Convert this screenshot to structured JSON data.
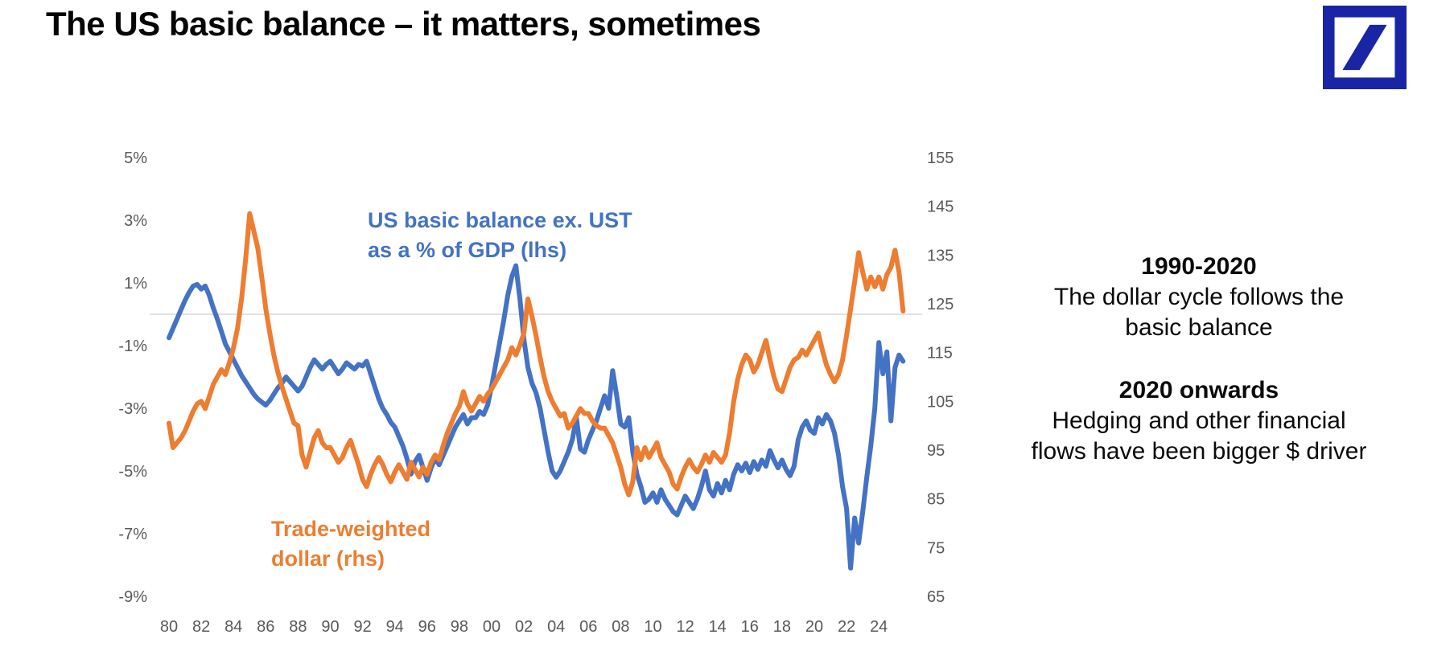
{
  "page": {
    "title": "The US basic balance – it matters, sometimes"
  },
  "logo": {
    "name": "deutsche-bank-logo",
    "color": "#1A25A5"
  },
  "annotations": {
    "blue_label": {
      "lines": [
        "US basic balance ex. UST",
        "as a % of GDP (lhs)"
      ],
      "color": "#4472C4"
    },
    "orange_label": {
      "lines": [
        "Trade-weighted",
        "dollar (rhs)"
      ],
      "color": "#ED7D31"
    }
  },
  "side_text": {
    "para1": {
      "heading": "1990-2020",
      "lines": [
        "The dollar cycle follows the",
        "basic balance"
      ]
    },
    "para2": {
      "heading": "2020 onwards",
      "lines": [
        "Hedging and other financial",
        "flows have been bigger $ driver"
      ]
    }
  },
  "chart_data": {
    "type": "line",
    "title": "",
    "xlabel": "",
    "ylabel_left": "US basic balance ex. UST as a % of GDP",
    "ylabel_right": "Trade-weighted dollar",
    "grid": "single horizontal zero line only",
    "legend_position": "in-plot text labels",
    "zero_line": {
      "axis": "left",
      "value": 0,
      "color": "#D9D9D9"
    },
    "x_axis": {
      "start_year": 1980,
      "end_year": 2025.5,
      "step_years": 0.25,
      "ticks": [
        {
          "label": "80",
          "year": 1980
        },
        {
          "label": "82",
          "year": 1982
        },
        {
          "label": "84",
          "year": 1984
        },
        {
          "label": "86",
          "year": 1986
        },
        {
          "label": "88",
          "year": 1988
        },
        {
          "label": "90",
          "year": 1990
        },
        {
          "label": "92",
          "year": 1992
        },
        {
          "label": "94",
          "year": 1994
        },
        {
          "label": "96",
          "year": 1996
        },
        {
          "label": "98",
          "year": 1998
        },
        {
          "label": "00",
          "year": 2000
        },
        {
          "label": "02",
          "year": 2002
        },
        {
          "label": "04",
          "year": 2004
        },
        {
          "label": "06",
          "year": 2006
        },
        {
          "label": "08",
          "year": 2008
        },
        {
          "label": "10",
          "year": 2010
        },
        {
          "label": "12",
          "year": 2012
        },
        {
          "label": "14",
          "year": 2014
        },
        {
          "label": "16",
          "year": 2016
        },
        {
          "label": "18",
          "year": 2018
        },
        {
          "label": "20",
          "year": 2020
        },
        {
          "label": "22",
          "year": 2022
        },
        {
          "label": "24",
          "year": 2024
        }
      ]
    },
    "left_axis": {
      "min": -9,
      "max": 5,
      "ticks": [
        {
          "label": "5%",
          "v": 5
        },
        {
          "label": "3%",
          "v": 3
        },
        {
          "label": "1%",
          "v": 1
        },
        {
          "label": "-1%",
          "v": -1
        },
        {
          "label": "-3%",
          "v": -3
        },
        {
          "label": "-5%",
          "v": -5
        },
        {
          "label": "-7%",
          "v": -7
        },
        {
          "label": "-9%",
          "v": -9
        }
      ]
    },
    "right_axis": {
      "min": 65,
      "max": 155,
      "ticks": [
        {
          "label": "155",
          "v": 155
        },
        {
          "label": "145",
          "v": 145
        },
        {
          "label": "135",
          "v": 135
        },
        {
          "label": "125",
          "v": 125
        },
        {
          "label": "115",
          "v": 115
        },
        {
          "label": "105",
          "v": 105
        },
        {
          "label": "95",
          "v": 95
        },
        {
          "label": "85",
          "v": 85
        },
        {
          "label": "75",
          "v": 75
        },
        {
          "label": "65",
          "v": 65
        }
      ]
    },
    "series": [
      {
        "name": "US basic balance ex. UST as a % of GDP (lhs)",
        "axis": "left",
        "color": "#4472C4",
        "values": [
          -0.75,
          -0.45,
          -0.15,
          0.15,
          0.45,
          0.7,
          0.9,
          0.95,
          0.8,
          0.9,
          0.6,
          0.2,
          -0.15,
          -0.55,
          -0.95,
          -1.2,
          -1.45,
          -1.7,
          -1.95,
          -2.15,
          -2.35,
          -2.55,
          -2.7,
          -2.8,
          -2.9,
          -2.75,
          -2.55,
          -2.35,
          -2.2,
          -2.0,
          -2.15,
          -2.3,
          -2.45,
          -2.3,
          -2.0,
          -1.7,
          -1.45,
          -1.6,
          -1.75,
          -1.6,
          -1.5,
          -1.7,
          -1.9,
          -1.75,
          -1.55,
          -1.65,
          -1.75,
          -1.6,
          -1.65,
          -1.5,
          -1.9,
          -2.3,
          -2.7,
          -3.0,
          -3.2,
          -3.45,
          -3.6,
          -3.9,
          -4.2,
          -4.6,
          -5.1,
          -4.7,
          -4.5,
          -4.9,
          -5.3,
          -4.9,
          -4.6,
          -4.8,
          -4.5,
          -4.2,
          -3.9,
          -3.6,
          -3.4,
          -3.2,
          -3.5,
          -3.3,
          -3.3,
          -3.1,
          -3.2,
          -2.9,
          -2.3,
          -1.6,
          -0.9,
          -0.2,
          0.6,
          1.2,
          1.55,
          0.5,
          -0.8,
          -1.7,
          -2.2,
          -2.5,
          -3.0,
          -3.7,
          -4.4,
          -5.0,
          -5.2,
          -5.0,
          -4.7,
          -4.4,
          -4.0,
          -3.3,
          -4.3,
          -4.4,
          -4.0,
          -3.7,
          -3.4,
          -3.0,
          -2.6,
          -3.0,
          -1.8,
          -2.6,
          -3.5,
          -3.6,
          -3.3,
          -4.4,
          -5.1,
          -5.5,
          -6.0,
          -5.9,
          -5.7,
          -6.0,
          -5.6,
          -5.9,
          -6.1,
          -6.3,
          -6.4,
          -6.1,
          -5.8,
          -6.0,
          -6.2,
          -5.9,
          -5.5,
          -5.0,
          -5.6,
          -5.8,
          -5.4,
          -5.7,
          -5.3,
          -5.6,
          -5.1,
          -4.8,
          -5.0,
          -4.75,
          -5.05,
          -4.7,
          -4.95,
          -4.65,
          -4.85,
          -4.35,
          -4.65,
          -4.9,
          -4.65,
          -4.95,
          -5.15,
          -4.85,
          -4.0,
          -3.6,
          -3.4,
          -3.7,
          -3.8,
          -3.3,
          -3.5,
          -3.2,
          -3.4,
          -3.8,
          -4.5,
          -5.5,
          -6.2,
          -8.1,
          -6.5,
          -7.3,
          -6.3,
          -5.2,
          -4.2,
          -3.0,
          -0.9,
          -1.9,
          -1.2,
          -3.4,
          -1.7,
          -1.3,
          -1.5
        ]
      },
      {
        "name": "Trade-weighted dollar (rhs)",
        "axis": "right",
        "color": "#ED7D31",
        "values": [
          100.5,
          95.5,
          96.5,
          97.5,
          99,
          101,
          103,
          104.5,
          105,
          103.5,
          106,
          108.5,
          110,
          111.5,
          110.5,
          113,
          116,
          120,
          126,
          134,
          143.5,
          140,
          136.5,
          130.5,
          124,
          119,
          114.5,
          111,
          108,
          105.5,
          103,
          100.5,
          100,
          94,
          91.5,
          94.5,
          97.5,
          99,
          96.5,
          95.5,
          95.5,
          94,
          92.5,
          93.5,
          95.5,
          97,
          94.5,
          92,
          89,
          87.5,
          90,
          92,
          93.5,
          92,
          90,
          88.5,
          90.5,
          92,
          90.5,
          89,
          92.5,
          91,
          89.5,
          91.5,
          90,
          92.5,
          94,
          93,
          96,
          98.5,
          100.5,
          102.5,
          104,
          107,
          104.5,
          103,
          104.5,
          106,
          105,
          106.5,
          107.5,
          109,
          110.5,
          112,
          113.5,
          116,
          114.5,
          116.5,
          119,
          126,
          122.5,
          118.5,
          114,
          110,
          107,
          105,
          103.5,
          102,
          102.5,
          99.5,
          100.5,
          102,
          103.5,
          102.5,
          102.5,
          101,
          100,
          99.5,
          99.5,
          98,
          96.5,
          94,
          91.5,
          88,
          85.8,
          88.5,
          95.5,
          93,
          95.5,
          93.5,
          95,
          96.5,
          93.5,
          92,
          90.5,
          88,
          87,
          89.5,
          91.5,
          93,
          91.5,
          90.5,
          92,
          94,
          92.5,
          94.5,
          93.5,
          92.5,
          94,
          98.5,
          105,
          109.5,
          112.5,
          114.5,
          113.5,
          111,
          112.5,
          115,
          117.5,
          113.5,
          110,
          107.5,
          107,
          109.5,
          112,
          113.5,
          114,
          115.5,
          114.5,
          116,
          117.5,
          119,
          115.5,
          112.5,
          110.5,
          109,
          110.5,
          113.5,
          118.5,
          124,
          129.5,
          135.5,
          131.5,
          128,
          130.5,
          128.5,
          130.5,
          128,
          131,
          132.5,
          136,
          131.5,
          123.5
        ]
      }
    ]
  }
}
